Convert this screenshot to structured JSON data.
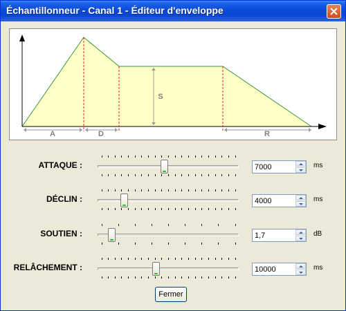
{
  "window": {
    "title": "Échantillonneur - Canal 1 - Éditeur d'enveloppe"
  },
  "graph": {
    "segments": {
      "attack": "A",
      "decay": "D",
      "sustain": "S",
      "release": "R"
    }
  },
  "params": [
    {
      "label": "ATTAQUE :",
      "value": "7000",
      "unit": "ms",
      "level": 0.47,
      "ticks": "regular"
    },
    {
      "label": "DÉCLIN :",
      "value": "4000",
      "unit": "ms",
      "level": 0.17,
      "ticks": "regular"
    },
    {
      "label": "SOUTIEN :",
      "value": "1,7",
      "unit": "dB",
      "level": 0.08,
      "ticks": "sparse"
    },
    {
      "label": "RELÂCHEMENT :",
      "value": "10000",
      "unit": "ms",
      "level": 0.41,
      "ticks": "regular"
    }
  ],
  "footer": {
    "close_label": "Fermer"
  },
  "colors": {
    "titlebar": "#0a46cf",
    "envelope_fill": "#ffffc8",
    "envelope_line": "#3a9a3a",
    "marker": "#e02020"
  }
}
